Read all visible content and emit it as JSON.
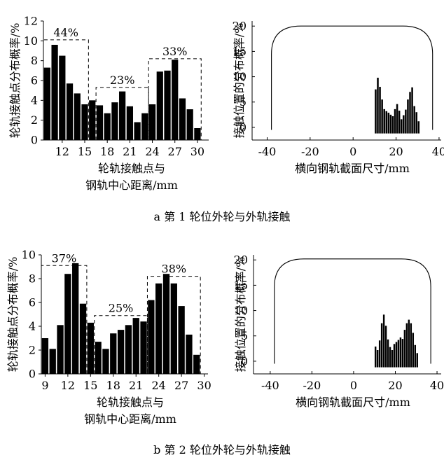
{
  "captions": {
    "a": "a 第 1 轮位外轮与外轨接触",
    "b": "b 第 2 轮位外轮与外轨接触"
  },
  "chart_data": [
    {
      "id": "a-left",
      "type": "bar",
      "ylabel": "轮轨接触点分布概率/%",
      "xlabel_line1": "轮轨接触点与",
      "xlabel_line2": "钢轨中心距离/mm",
      "ylim": [
        0,
        12
      ],
      "yticks": [
        0,
        2,
        4,
        6,
        8,
        10,
        12
      ],
      "x_range": [
        9.5,
        31.5
      ],
      "xticks": [
        12,
        15,
        18,
        21,
        24,
        27,
        30
      ],
      "bars": [
        {
          "x": 10,
          "value": 7.3
        },
        {
          "x": 11,
          "value": 9.6
        },
        {
          "x": 12,
          "value": 8.5
        },
        {
          "x": 13,
          "value": 5.7
        },
        {
          "x": 14,
          "value": 4.7
        },
        {
          "x": 15,
          "value": 3.6
        },
        {
          "x": 16,
          "value": 4.0
        },
        {
          "x": 17,
          "value": 3.5
        },
        {
          "x": 18,
          "value": 2.7
        },
        {
          "x": 19,
          "value": 3.8
        },
        {
          "x": 20,
          "value": 4.9
        },
        {
          "x": 21,
          "value": 3.4
        },
        {
          "x": 22,
          "value": 1.8
        },
        {
          "x": 23,
          "value": 2.7
        },
        {
          "x": 24,
          "value": 3.6
        },
        {
          "x": 25,
          "value": 6.9
        },
        {
          "x": 26,
          "value": 7.0
        },
        {
          "x": 27,
          "value": 8.1
        },
        {
          "x": 28,
          "value": 4.2
        },
        {
          "x": 29,
          "value": 3.1
        },
        {
          "x": 30,
          "value": 1.2
        }
      ],
      "groups": [
        {
          "label": "44%",
          "x_start": 9.5,
          "x_end": 15.5,
          "top": 10.1
        },
        {
          "label": "23%",
          "x_start": 16.5,
          "x_end": 23.5,
          "top": 5.3
        },
        {
          "label": "33%",
          "x_start": 23.5,
          "x_end": 30.5,
          "top": 8.2
        }
      ]
    },
    {
      "id": "a-right",
      "type": "bar",
      "ylabel": "接触位置的分布概率/%",
      "xlabel": "横向钢轨截面尺寸/mm",
      "ylim": [
        -2.5,
        21
      ],
      "yticks": [
        0,
        5,
        10,
        15,
        20
      ],
      "x_range": [
        -47,
        41
      ],
      "xticks": [
        -40,
        -20,
        0,
        20,
        40
      ],
      "profile": {
        "x_left": -38,
        "x_right": 37,
        "bottom": -0.5,
        "top": 20
      },
      "bars": [
        {
          "x": 10.5,
          "value": 7.5
        },
        {
          "x": 11.5,
          "value": 9.8
        },
        {
          "x": 12.5,
          "value": 8.0
        },
        {
          "x": 13.5,
          "value": 5.5
        },
        {
          "x": 14.5,
          "value": 3.6
        },
        {
          "x": 15.5,
          "value": 3.2
        },
        {
          "x": 16.5,
          "value": 2.9
        },
        {
          "x": 17.5,
          "value": 2.5
        },
        {
          "x": 18.5,
          "value": 2.2
        },
        {
          "x": 19.5,
          "value": 3.6
        },
        {
          "x": 20.5,
          "value": 4.6
        },
        {
          "x": 21.5,
          "value": 3.3
        },
        {
          "x": 22.5,
          "value": 1.6
        },
        {
          "x": 23.5,
          "value": 2.4
        },
        {
          "x": 24.5,
          "value": 3.5
        },
        {
          "x": 25.5,
          "value": 5.5
        },
        {
          "x": 26.5,
          "value": 7.0
        },
        {
          "x": 27.5,
          "value": 7.9
        },
        {
          "x": 28.5,
          "value": 4.2
        },
        {
          "x": 29.5,
          "value": 3.0
        },
        {
          "x": 30.5,
          "value": 1.2
        }
      ]
    },
    {
      "id": "b-left",
      "type": "bar",
      "ylabel": "轮轨接触点分布概率/%",
      "xlabel_line1": "轮轨接触点与",
      "xlabel_line2": "钢轨中心距离/mm",
      "ylim": [
        0,
        10
      ],
      "yticks": [
        0,
        2,
        4,
        6,
        8,
        10
      ],
      "x_range": [
        8.5,
        30.5
      ],
      "xticks": [
        9,
        12,
        15,
        18,
        21,
        24,
        27,
        30
      ],
      "bars": [
        {
          "x": 9,
          "value": 3.0
        },
        {
          "x": 10,
          "value": 2.1
        },
        {
          "x": 11,
          "value": 4.1
        },
        {
          "x": 12,
          "value": 8.4
        },
        {
          "x": 13,
          "value": 9.3
        },
        {
          "x": 14,
          "value": 5.9
        },
        {
          "x": 15,
          "value": 4.3
        },
        {
          "x": 16,
          "value": 2.7
        },
        {
          "x": 17,
          "value": 2.1
        },
        {
          "x": 18,
          "value": 3.4
        },
        {
          "x": 19,
          "value": 3.7
        },
        {
          "x": 20,
          "value": 4.1
        },
        {
          "x": 21,
          "value": 4.7
        },
        {
          "x": 22,
          "value": 4.4
        },
        {
          "x": 23,
          "value": 6.2
        },
        {
          "x": 24,
          "value": 7.6
        },
        {
          "x": 25,
          "value": 8.4
        },
        {
          "x": 26,
          "value": 7.6
        },
        {
          "x": 27,
          "value": 5.7
        },
        {
          "x": 28,
          "value": 3.3
        },
        {
          "x": 29,
          "value": 1.6
        }
      ],
      "groups": [
        {
          "label": "37%",
          "x_start": 8.5,
          "x_end": 14.5,
          "top": 9.1
        },
        {
          "label": "25%",
          "x_start": 15.5,
          "x_end": 22.5,
          "top": 4.9
        },
        {
          "label": "38%",
          "x_start": 22.5,
          "x_end": 29.5,
          "top": 8.2
        }
      ]
    },
    {
      "id": "b-right",
      "type": "bar",
      "ylabel": "接触位置的分布概率/%",
      "xlabel": "横向钢轨截面尺寸/mm",
      "ylim": [
        -2.5,
        21
      ],
      "yticks": [
        0,
        5,
        10,
        15,
        20
      ],
      "x_range": [
        -48,
        42
      ],
      "xticks": [
        -40,
        -20,
        0,
        20,
        40
      ],
      "profile": {
        "x_left": -38,
        "x_right": 37,
        "bottom": -0.5,
        "top": 20.2
      },
      "bars": [
        {
          "x": 10.5,
          "value": 2.9
        },
        {
          "x": 11.5,
          "value": 2.2
        },
        {
          "x": 12.5,
          "value": 4.1
        },
        {
          "x": 13.5,
          "value": 7.5
        },
        {
          "x": 14.5,
          "value": 9.2
        },
        {
          "x": 15.5,
          "value": 7.0
        },
        {
          "x": 16.5,
          "value": 4.3
        },
        {
          "x": 17.5,
          "value": 2.8
        },
        {
          "x": 18.5,
          "value": 2.2
        },
        {
          "x": 19.5,
          "value": 3.4
        },
        {
          "x": 20.5,
          "value": 3.8
        },
        {
          "x": 21.5,
          "value": 4.2
        },
        {
          "x": 22.5,
          "value": 4.7
        },
        {
          "x": 23.5,
          "value": 4.4
        },
        {
          "x": 24.5,
          "value": 6.2
        },
        {
          "x": 25.5,
          "value": 7.5
        },
        {
          "x": 26.5,
          "value": 8.2
        },
        {
          "x": 27.5,
          "value": 7.5
        },
        {
          "x": 28.5,
          "value": 5.6
        },
        {
          "x": 29.5,
          "value": 3.2
        },
        {
          "x": 30.5,
          "value": 1.6
        }
      ]
    }
  ]
}
